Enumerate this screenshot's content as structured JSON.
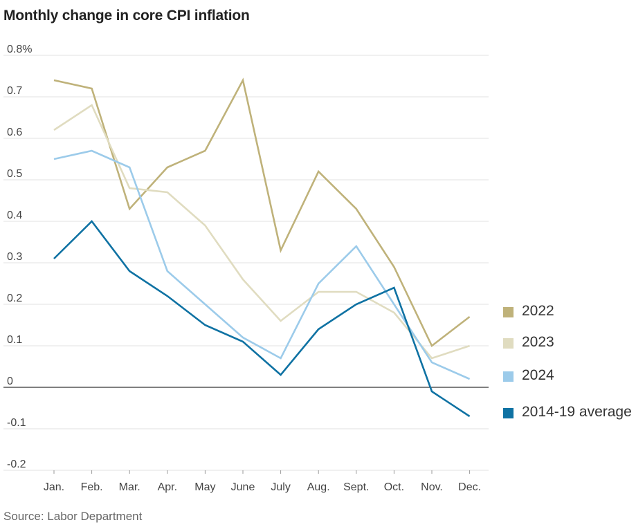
{
  "title": "Monthly change in core CPI inflation",
  "source": "Source: Labor Department",
  "chart_data": {
    "type": "line",
    "title": "Monthly change in core CPI inflation",
    "xlabel": "",
    "ylabel": "",
    "categories": [
      "Jan.",
      "Feb.",
      "Mar.",
      "Apr.",
      "May",
      "June",
      "July",
      "Aug.",
      "Sept.",
      "Oct.",
      "Nov.",
      "Dec."
    ],
    "yticks": [
      {
        "value": 0.8,
        "label": "0.8%"
      },
      {
        "value": 0.7,
        "label": "0.7"
      },
      {
        "value": 0.6,
        "label": "0.6"
      },
      {
        "value": 0.5,
        "label": "0.5"
      },
      {
        "value": 0.4,
        "label": "0.4"
      },
      {
        "value": 0.3,
        "label": "0.3"
      },
      {
        "value": 0.2,
        "label": "0.2"
      },
      {
        "value": 0.1,
        "label": "0.1"
      },
      {
        "value": 0,
        "label": "0"
      },
      {
        "value": -0.1,
        "label": "-0.1"
      },
      {
        "value": -0.2,
        "label": "-0.2"
      }
    ],
    "ylim": [
      -0.2,
      0.8
    ],
    "grid": true,
    "legend_position": "right",
    "series": [
      {
        "name": "2022",
        "color": "#bfb27a",
        "values": [
          0.74,
          0.72,
          0.43,
          0.53,
          0.57,
          0.74,
          0.33,
          0.52,
          0.43,
          0.29,
          0.1,
          0.17
        ]
      },
      {
        "name": "2023",
        "color": "#e0dcc0",
        "values": [
          0.62,
          0.68,
          0.48,
          0.47,
          0.39,
          0.26,
          0.16,
          0.23,
          0.23,
          0.18,
          0.07,
          0.1
        ]
      },
      {
        "name": "2024",
        "color": "#9ccbea",
        "values": [
          0.55,
          0.57,
          0.53,
          0.28,
          0.2,
          0.12,
          0.07,
          0.25,
          0.34,
          0.2,
          0.06,
          0.02
        ]
      },
      {
        "name": "2014-19 average",
        "color": "#0f72a3",
        "values": [
          0.31,
          0.4,
          0.28,
          0.22,
          0.15,
          0.11,
          0.03,
          0.14,
          0.2,
          0.24,
          -0.01,
          -0.07
        ]
      }
    ]
  }
}
